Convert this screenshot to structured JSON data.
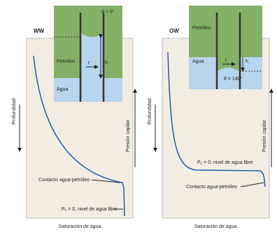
{
  "panels": [
    {
      "label": "WW",
      "inset": {
        "angle": "θ = 0°",
        "oil": "Petróleo",
        "water": "Agua",
        "radius": "r",
        "height": "h"
      },
      "depth_axis": "Profundidad",
      "pressure_axis": "Presión capilar",
      "contact": "Contacto agua-petróleo",
      "free_level": {
        "symbol": "P",
        "subscript": "c",
        "text": "= 0, nivel de agua libre"
      },
      "x_axis": "Saturación de agua"
    },
    {
      "label": "OW",
      "inset": {
        "angle": "θ = 140°",
        "oil": "Petróleo",
        "water": "Agua",
        "radius": "r",
        "height": "h"
      },
      "depth_axis": "Profundidad",
      "pressure_axis": "Presión capilar",
      "contact": "Contacto agua-petróleo",
      "free_level": {
        "symbol": "P",
        "subscript": "c",
        "text": "= 0, nivel de agua libre"
      },
      "x_axis": "Saturación de agua"
    }
  ]
}
